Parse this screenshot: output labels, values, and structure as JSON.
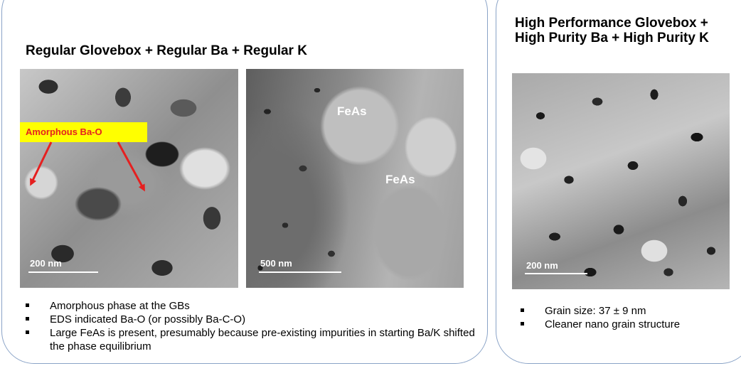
{
  "left_panel": {
    "title": "Regular Glovebox + Regular Ba + Regular K",
    "image1": {
      "callout": "Amorphous Ba-O",
      "scale": "200 nm"
    },
    "image2": {
      "labels": [
        "FeAs",
        "FeAs"
      ],
      "scale": "500 nm"
    },
    "bullets": [
      "Amorphous phase at the GBs",
      "EDS indicated Ba-O (or possibly Ba-C-O)",
      "Large FeAs is present, presumably because pre-existing impurities in starting Ba/K shifted the phase equilibrium"
    ]
  },
  "right_panel": {
    "title": "High Performance Glovebox + High Purity Ba + High Purity K",
    "image": {
      "scale": "200 nm"
    },
    "bullets": [
      "Grain size: 37 ± 9 nm",
      "Cleaner nano grain structure"
    ]
  },
  "colors": {
    "panel_border": "#8aa3c7",
    "callout_bg": "#ffff00",
    "callout_text": "#e52020",
    "arrow": "#e52020"
  }
}
